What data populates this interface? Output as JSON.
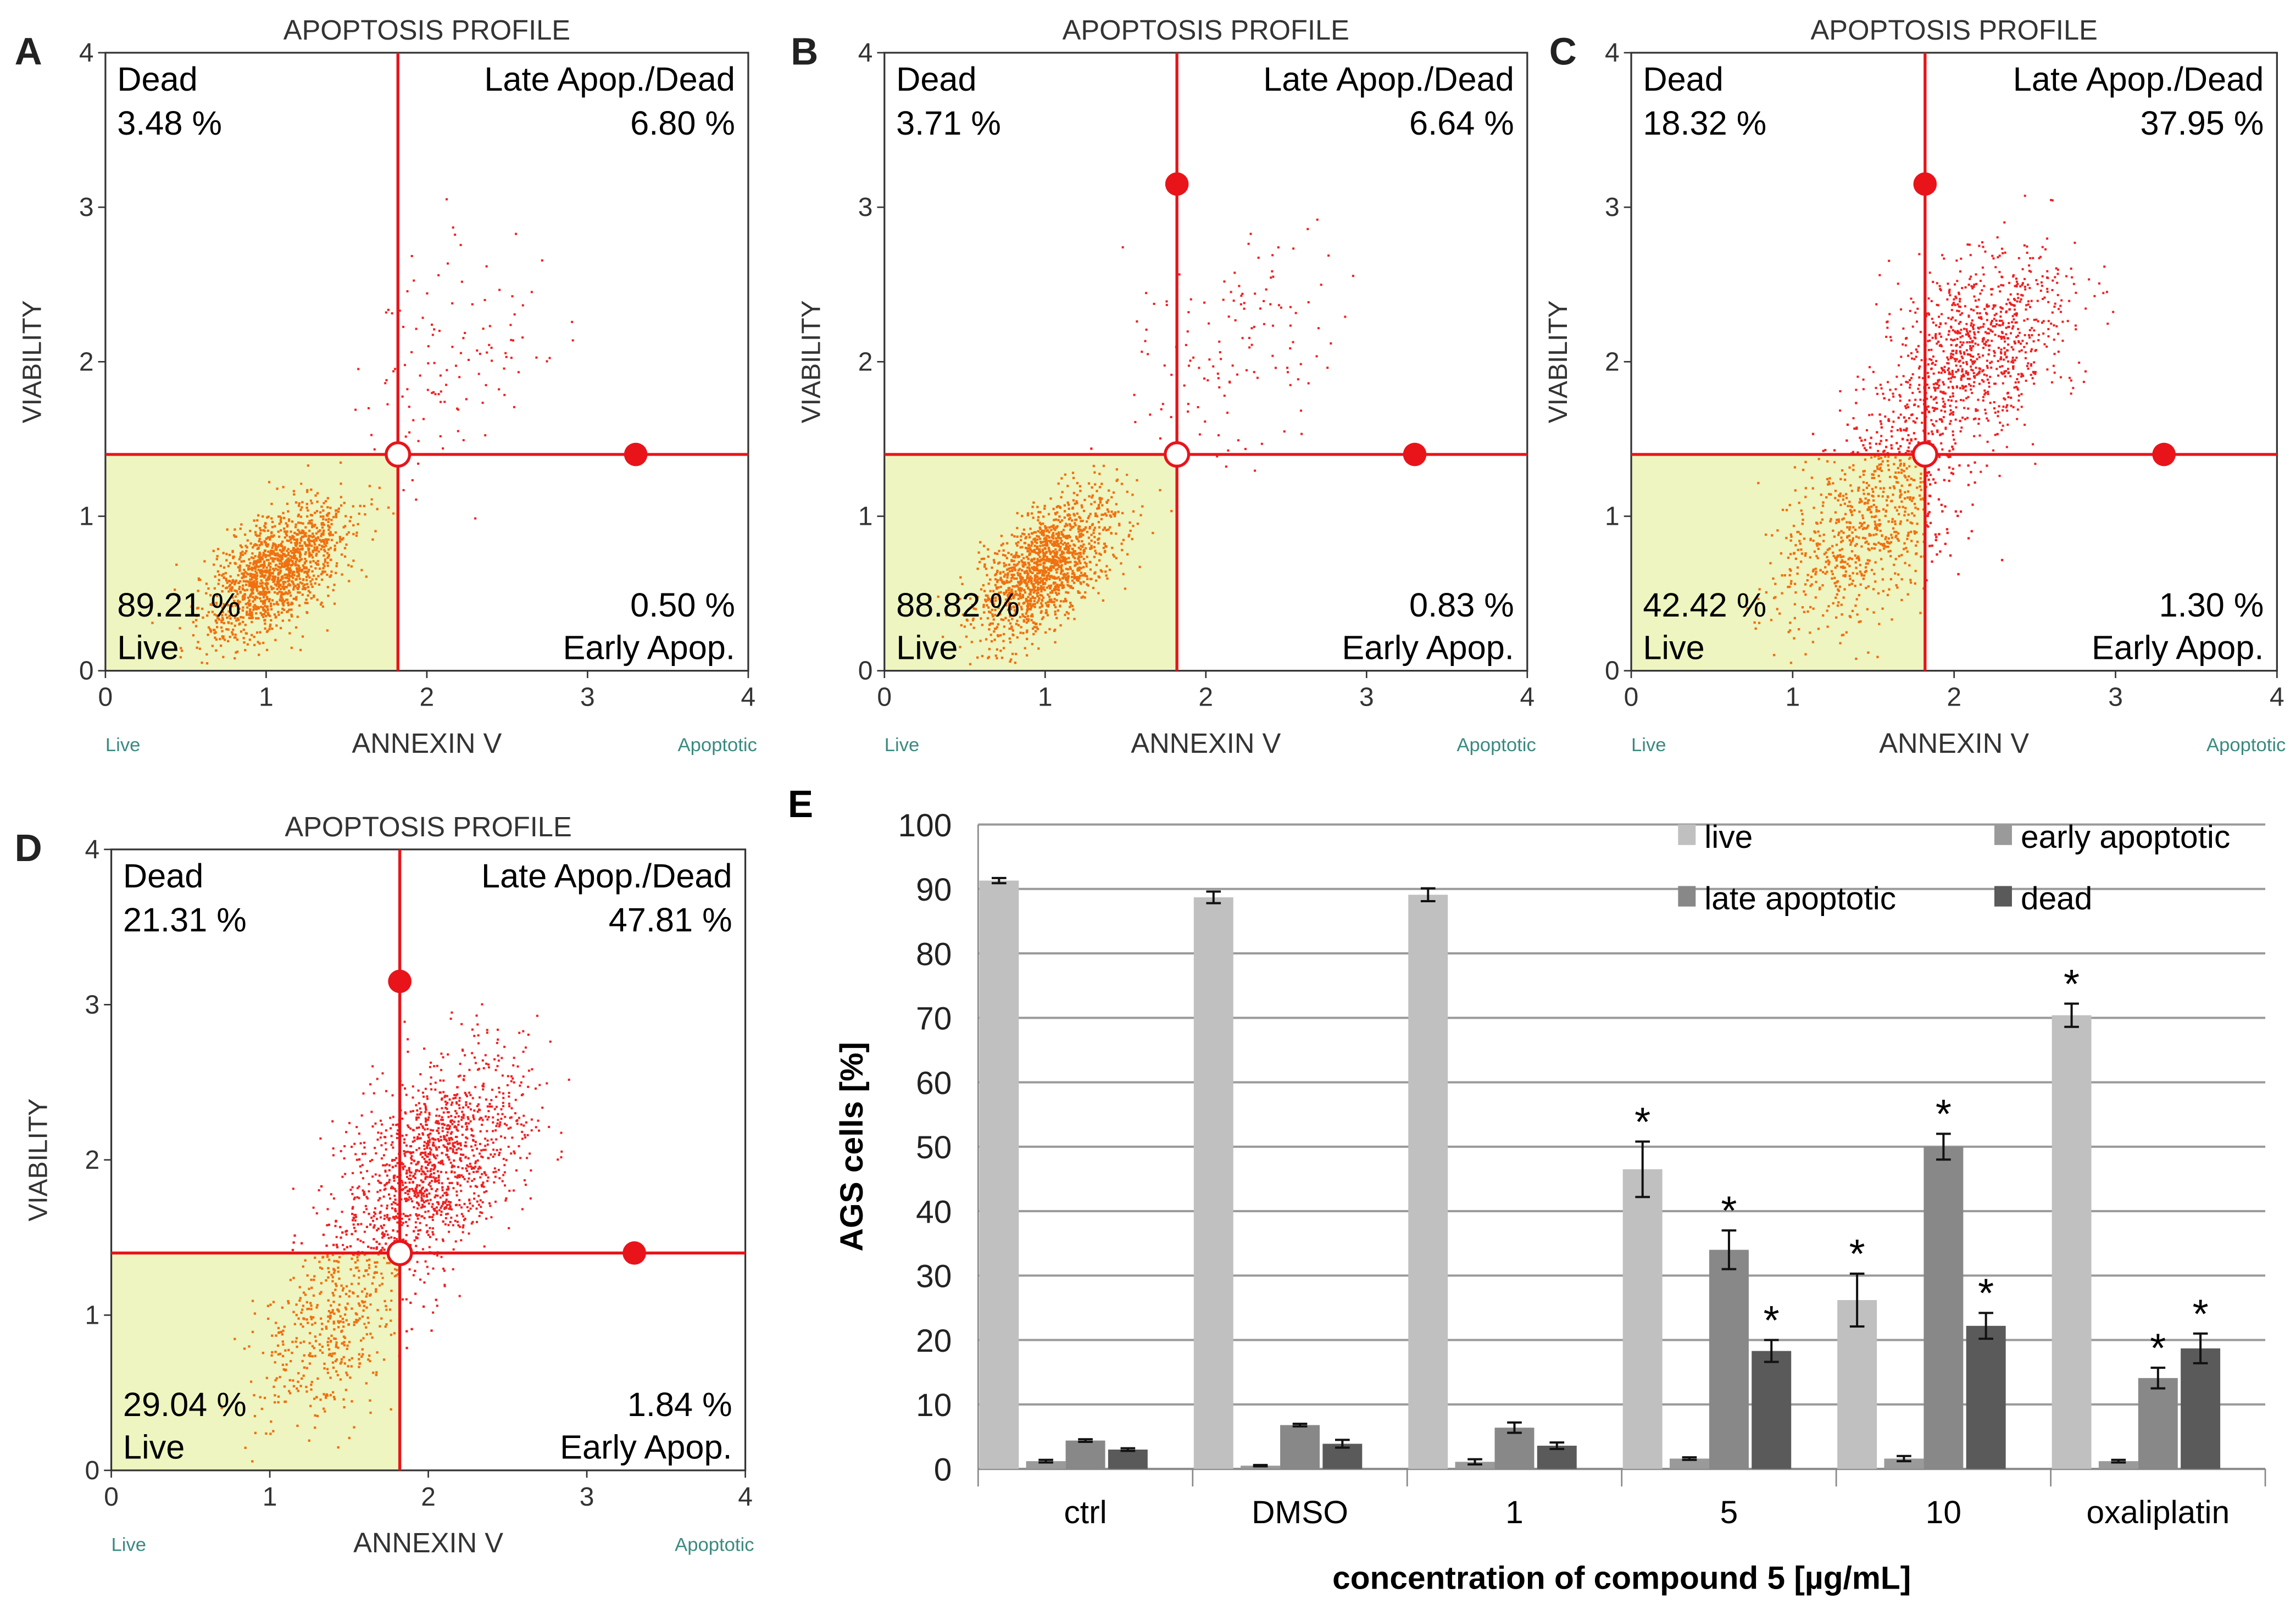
{
  "chart_data": [
    {
      "type": "scatter",
      "panel_letter": "A",
      "title": "APOPTOSIS PROFILE",
      "xlabel": "ANNEXIN V",
      "ylabel": "VIABILITY",
      "xlim": [
        0,
        4
      ],
      "ylim": [
        0,
        4
      ],
      "xticks": [
        "0",
        "1",
        "2",
        "3",
        "4"
      ],
      "yticks": [
        "0",
        "1",
        "2",
        "3",
        "4"
      ],
      "x_low_label": "Live",
      "x_high_label": "Apoptotic",
      "gate": {
        "x": 1.82,
        "y": 1.4
      },
      "quadrants": {
        "dead_label": "Dead",
        "dead": "3.48 %",
        "late_label": "Late Apop./Dead",
        "late": "6.80 %",
        "live_label": "Live",
        "live": "89.21 %",
        "early_label": "Early Apop.",
        "early": "0.50 %"
      }
    },
    {
      "type": "scatter",
      "panel_letter": "B",
      "title": "APOPTOSIS PROFILE",
      "xlabel": "ANNEXIN V",
      "ylabel": "VIABILITY",
      "xlim": [
        0,
        4
      ],
      "ylim": [
        0,
        4
      ],
      "xticks": [
        "0",
        "1",
        "2",
        "3",
        "4"
      ],
      "yticks": [
        "0",
        "1",
        "2",
        "3",
        "4"
      ],
      "x_low_label": "Live",
      "x_high_label": "Apoptotic",
      "gate": {
        "x": 1.82,
        "y": 1.4
      },
      "quadrants": {
        "dead_label": "Dead",
        "dead": "3.71 %",
        "late_label": "Late Apop./Dead",
        "late": "6.64 %",
        "live_label": "Live",
        "live": "88.82 %",
        "early_label": "Early Apop.",
        "early": "0.83 %"
      }
    },
    {
      "type": "scatter",
      "panel_letter": "C",
      "title": "APOPTOSIS PROFILE",
      "xlabel": "ANNEXIN V",
      "ylabel": "VIABILITY",
      "xlim": [
        0,
        4
      ],
      "ylim": [
        0,
        4
      ],
      "xticks": [
        "0",
        "1",
        "2",
        "3",
        "4"
      ],
      "yticks": [
        "0",
        "1",
        "2",
        "3",
        "4"
      ],
      "x_low_label": "Live",
      "x_high_label": "Apoptotic",
      "gate": {
        "x": 1.82,
        "y": 1.4
      },
      "quadrants": {
        "dead_label": "Dead",
        "dead": "18.32 %",
        "late_label": "Late Apop./Dead",
        "late": "37.95 %",
        "live_label": "Live",
        "live": "42.42 %",
        "early_label": "Early Apop.",
        "early": "1.30 %"
      }
    },
    {
      "type": "scatter",
      "panel_letter": "D",
      "title": "APOPTOSIS PROFILE",
      "xlabel": "ANNEXIN V",
      "ylabel": "VIABILITY",
      "xlim": [
        0,
        4
      ],
      "ylim": [
        0,
        4
      ],
      "xticks": [
        "0",
        "1",
        "2",
        "3",
        "4"
      ],
      "yticks": [
        "0",
        "1",
        "2",
        "3",
        "4"
      ],
      "x_low_label": "Live",
      "x_high_label": "Apoptotic",
      "gate": {
        "x": 1.82,
        "y": 1.4
      },
      "quadrants": {
        "dead_label": "Dead",
        "dead": "21.31 %",
        "late_label": "Late Apop./Dead",
        "late": "47.81 %",
        "live_label": "Live",
        "live": "29.04 %",
        "early_label": "Early Apop.",
        "early": "1.84 %"
      }
    },
    {
      "type": "bar",
      "panel_letter": "E",
      "xlabel": "concentration of compound 5 [µg/mL]",
      "ylabel": "AGS cells [%]",
      "ylim": [
        0,
        100
      ],
      "yticks": [
        "0",
        "10",
        "20",
        "30",
        "40",
        "50",
        "60",
        "70",
        "80",
        "90",
        "100"
      ],
      "grid": true,
      "legend": "top-right",
      "categories": [
        "ctrl",
        "DMSO",
        "1",
        "5",
        "10",
        "oxaliplatin"
      ],
      "series": [
        {
          "name": "live",
          "color": "#c0c0c0",
          "values": [
            91.3,
            88.7,
            89.1,
            46.5,
            26.2,
            70.4
          ],
          "errors": [
            0.4,
            0.9,
            1.0,
            4.3,
            4.1,
            1.8
          ],
          "significant": [
            false,
            false,
            false,
            true,
            true,
            true
          ]
        },
        {
          "name": "early apoptotic",
          "color": "#9a9a9a",
          "values": [
            1.2,
            0.5,
            1.1,
            1.6,
            1.6,
            1.2
          ],
          "errors": [
            0.2,
            0.1,
            0.4,
            0.2,
            0.4,
            0.2
          ],
          "significant": [
            false,
            false,
            false,
            false,
            false,
            false
          ]
        },
        {
          "name": "late apoptotic",
          "color": "#888888",
          "values": [
            4.4,
            6.8,
            6.4,
            34.0,
            50.0,
            14.1
          ],
          "errors": [
            0.2,
            0.2,
            0.8,
            3.0,
            2.0,
            1.6
          ],
          "significant": [
            false,
            false,
            false,
            true,
            true,
            true
          ]
        },
        {
          "name": "dead",
          "color": "#5a5a5a",
          "values": [
            3.0,
            3.9,
            3.6,
            18.3,
            22.2,
            18.7
          ],
          "errors": [
            0.2,
            0.6,
            0.5,
            1.7,
            2.0,
            2.3
          ],
          "significant": [
            false,
            false,
            false,
            true,
            true,
            true
          ]
        }
      ],
      "significance_marker": "*"
    }
  ]
}
